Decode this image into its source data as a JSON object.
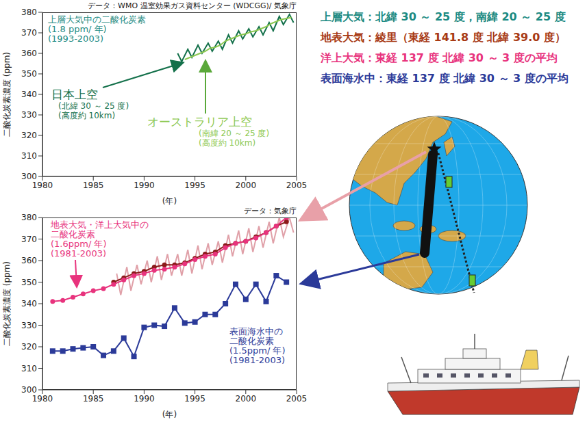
{
  "chart_data": [
    {
      "type": "line",
      "source": "データ：WMO 温室効果ガス資料センター (WDCGG)/ 気象庁",
      "x_label": "(年)",
      "y_label": "二酸化炭素濃度 (ppm)",
      "xlim": [
        1980,
        2005
      ],
      "xticks": [
        1980,
        1985,
        1990,
        1995,
        2000,
        2005
      ],
      "ylim": [
        300,
        380
      ],
      "yticks": [
        300,
        310,
        320,
        330,
        340,
        350,
        360,
        370,
        380
      ],
      "annotations": [
        {
          "text": [
            "上層大気中の二酸化炭素",
            "(1.8 ppm/ 年)",
            "(1993-2003)"
          ],
          "color": "#1b8a82"
        }
      ],
      "series": [
        {
          "name": "日本上空",
          "notes": [
            "(北緯 30 ～ 25 度)",
            "(高度約 10km)"
          ],
          "color": "#13704a",
          "marker": "none",
          "line_style": "solid",
          "x": [
            1993.3,
            1993.7,
            1994.3,
            1994.7,
            1995.3,
            1995.7,
            1996.3,
            1996.7,
            1997.3,
            1997.7,
            1998.3,
            1998.7,
            1999.3,
            1999.7,
            2000.3,
            2000.7,
            2001.3,
            2001.7,
            2002.3,
            2002.7,
            2003.3,
            2003.7,
            2004.3,
            2004.7
          ],
          "values": [
            360,
            356,
            362,
            358,
            364,
            360,
            365,
            361,
            366,
            362,
            369,
            365,
            371,
            367,
            372,
            368,
            373,
            369,
            375,
            371,
            378,
            374,
            379,
            375
          ]
        },
        {
          "name": "オーストラリア上空",
          "notes": [
            "(南緯 20 ～ 25 度)",
            "(高度約 10km)"
          ],
          "color": "#8cc850",
          "marker": "none",
          "line_style": "solid",
          "x": [
            1994.0,
            1994.5,
            1995.0,
            1995.5,
            1996.0,
            1996.5,
            1997.0,
            1997.5,
            1998.0,
            1998.5,
            1999.0,
            1999.5,
            2000.0,
            2000.5,
            2001.0,
            2001.5,
            2002.0,
            2002.5,
            2003.0,
            2003.5,
            2004.0,
            2004.5
          ],
          "values": [
            357,
            358,
            359,
            360,
            361,
            362.5,
            363,
            364,
            366,
            367,
            368,
            369,
            369.5,
            370.5,
            371,
            372,
            373,
            374.5,
            375.5,
            376.5,
            377,
            377.5
          ]
        }
      ]
    },
    {
      "type": "line",
      "source": "データ：気象庁",
      "x_label": "(年)",
      "y_label": "二酸化炭素濃度 (ppm)",
      "xlim": [
        1980,
        2005
      ],
      "xticks": [
        1980,
        1985,
        1990,
        1995,
        2000,
        2005
      ],
      "ylim": [
        300,
        380
      ],
      "yticks": [
        300,
        310,
        320,
        330,
        340,
        350,
        360,
        370,
        380
      ],
      "annotations": [
        {
          "text": [
            "地表大気・洋上大気中の",
            "二酸化炭素",
            "(1.6ppm/ 年)",
            "(1981-2003)"
          ],
          "color": "#e8337d"
        },
        {
          "text": [
            "表面海水中の",
            "二酸化炭素",
            "(1.5ppm/ 年)",
            "(1981-2003)"
          ],
          "color": "#2b3a99"
        }
      ],
      "series": [
        {
          "color": "#e0a0a8",
          "marker": "none",
          "line_style": "solid",
          "x": [
            1987.3,
            1987.7,
            1988.3,
            1988.7,
            1989.3,
            1989.7,
            1990.3,
            1990.7,
            1991.3,
            1991.7,
            1992.3,
            1992.7,
            1993.3,
            1993.7,
            1994.3,
            1994.7,
            1995.3,
            1995.7,
            1996.3,
            1996.7,
            1997.3,
            1997.7,
            1998.3,
            1998.7,
            1999.3,
            1999.7,
            2000.3,
            2000.7,
            2001.3,
            2001.7,
            2002.3,
            2002.7,
            2003.3,
            2003.7,
            2004.3,
            2004.7
          ],
          "values": [
            354,
            344,
            357,
            346,
            358,
            349,
            360,
            350,
            362,
            351,
            363,
            353,
            363,
            353,
            365,
            354,
            367,
            356,
            368,
            358,
            369,
            359,
            372,
            362,
            374,
            363,
            375,
            364,
            376,
            366,
            378,
            368,
            380,
            371,
            380,
            373
          ]
        },
        {
          "color": "#8b1a1a",
          "marker": "circle",
          "line_style": "solid",
          "x": [
            1987,
            1988,
            1989,
            1990,
            1991,
            1992,
            1993,
            1994,
            1995,
            1996,
            1997,
            1998,
            1999,
            2000,
            2001,
            2002,
            2003,
            2004
          ],
          "values": [
            350,
            352,
            354,
            355,
            357,
            358,
            358,
            359,
            361,
            363,
            364,
            367,
            368,
            369,
            371,
            373,
            376,
            378
          ]
        },
        {
          "color": "#e8337d",
          "marker": "circle",
          "line_style": "solid",
          "x": [
            1981,
            1982,
            1983,
            1984,
            1985,
            1986,
            1987,
            1988,
            1989,
            1990,
            1991,
            1992,
            1993,
            1994,
            1995,
            1996,
            1997,
            1998,
            1999,
            2000,
            2001,
            2002,
            2003,
            2004
          ],
          "values": [
            341,
            341.5,
            343,
            344.5,
            346,
            347,
            349,
            351,
            353,
            354,
            355.5,
            356,
            357,
            358.5,
            360.5,
            362,
            363,
            366,
            368,
            369,
            370.5,
            373,
            376,
            380
          ]
        },
        {
          "color": "#2b3a99",
          "marker": "square",
          "line_style": "solid",
          "x": [
            1981,
            1982,
            1983,
            1984,
            1985,
            1986,
            1987,
            1988,
            1989,
            1990,
            1991,
            1992,
            1993,
            1994,
            1995,
            1996,
            1997,
            1998,
            1999,
            2000,
            2001,
            2002,
            2003,
            2004
          ],
          "values": [
            318,
            318,
            319,
            319.5,
            320,
            316,
            318,
            324,
            315.5,
            329,
            330,
            329.5,
            338,
            331,
            331.5,
            335,
            335,
            340,
            349,
            342,
            349,
            341,
            353,
            350
          ]
        }
      ]
    }
  ],
  "locations": [
    {
      "text": "上層大気：北緯 30 ～ 25 度，南緯 20 ～ 25 度",
      "color": "#1b8a82"
    },
    {
      "text": "地表大気：綾里（東経 141.8 度 北緯 39.0 度）",
      "color": "#a83a14"
    },
    {
      "text": "洋上大気：東経 137 度 北緯 30 ～ 3 度の平均",
      "color": "#e8337d"
    },
    {
      "text": "表面海水中：東経 137 度 北緯 30 ～ 3 度の平均",
      "color": "#2b3a99"
    }
  ]
}
